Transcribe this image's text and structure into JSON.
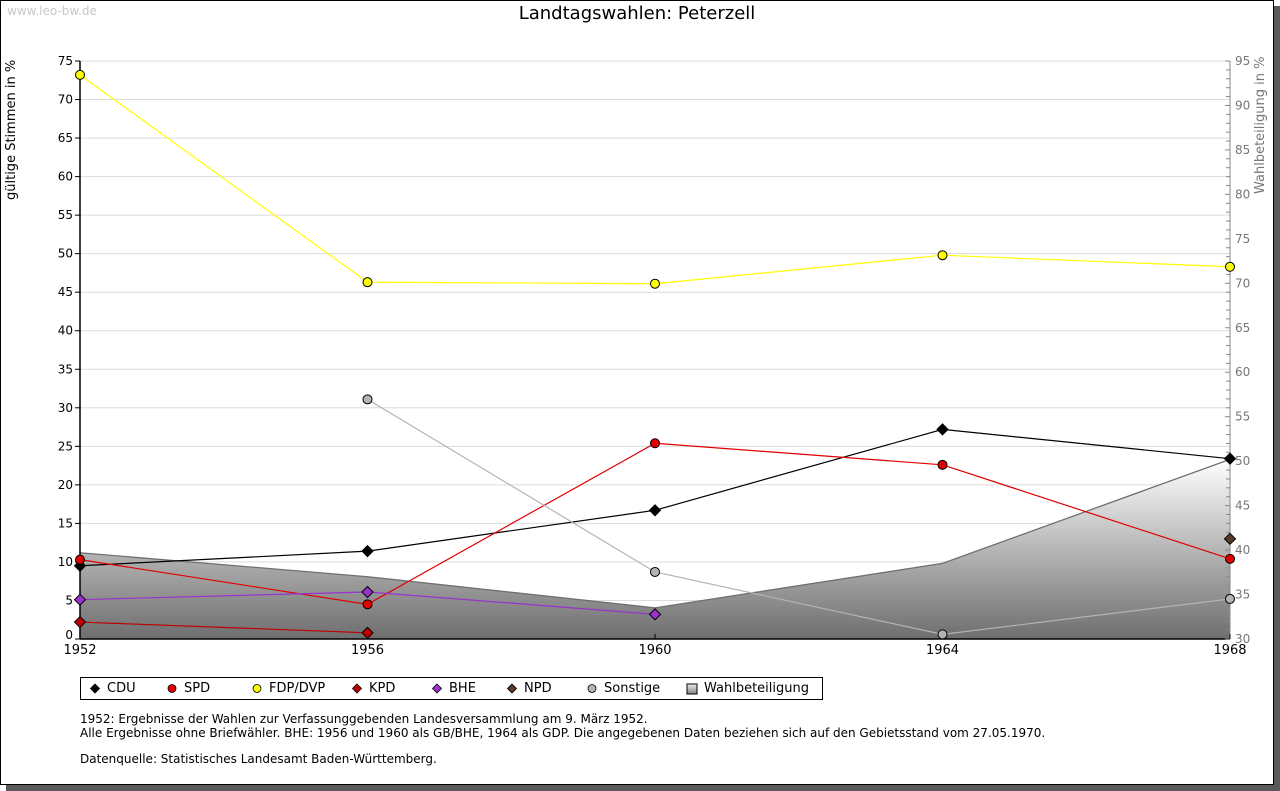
{
  "watermark": "www.leo-bw.de",
  "chart_data": {
    "type": "line",
    "title": "Landtagswahlen: Peterzell",
    "ylabel": "gültige Stimmen in %",
    "y2label": "Wahlbeteiligung in %",
    "xlabel": "",
    "x": [
      1952,
      1956,
      1960,
      1964,
      1968
    ],
    "x_tick_labels": [
      "1952",
      "1956",
      "1960",
      "1964",
      "1968"
    ],
    "ylim": [
      0,
      75
    ],
    "y_ticks": [
      "0",
      "5",
      "10",
      "15",
      "20",
      "25",
      "30",
      "35",
      "40",
      "45",
      "50",
      "55",
      "60",
      "65",
      "70",
      "75"
    ],
    "y2lim": [
      30,
      95
    ],
    "y2_ticks": [
      "30",
      "35",
      "40",
      "45",
      "50",
      "55",
      "60",
      "65",
      "70",
      "75",
      "80",
      "85",
      "90",
      "95"
    ],
    "grid": true,
    "legend_position": "bottom",
    "series": [
      {
        "name": "CDU",
        "color": "#000000",
        "marker": "diamond",
        "values": [
          9.5,
          11.4,
          16.7,
          27.2,
          23.4
        ]
      },
      {
        "name": "SPD",
        "color": "#e00000",
        "marker": "circle",
        "values": [
          10.3,
          4.5,
          25.4,
          22.6,
          10.4
        ]
      },
      {
        "name": "FDP/DVP",
        "color": "#ffff00",
        "marker": "circle",
        "values": [
          73.2,
          46.3,
          46.1,
          49.8,
          48.3
        ]
      },
      {
        "name": "KPD",
        "color": "#c00000",
        "marker": "diamond",
        "values": [
          2.2,
          0.8,
          null,
          null,
          null
        ]
      },
      {
        "name": "BHE",
        "color": "#9933cc",
        "marker": "diamond",
        "values": [
          5.1,
          6.1,
          3.2,
          null,
          null
        ]
      },
      {
        "name": "NPD",
        "color": "#5a3a28",
        "marker": "diamond",
        "values": [
          null,
          null,
          null,
          null,
          13.0
        ]
      },
      {
        "name": "Sonstige",
        "color": "#b4b4b4",
        "marker": "circle",
        "values": [
          null,
          31.1,
          8.7,
          0.6,
          5.2
        ]
      },
      {
        "name": "Wahlbeteiligung",
        "color": "#808080",
        "marker": "square",
        "axis": "right",
        "type": "area",
        "values": [
          39.7,
          37.0,
          33.5,
          38.5,
          50.2
        ]
      }
    ]
  },
  "notes": {
    "line1": "1952: Ergebnisse der Wahlen zur Verfassunggebenden Landesversammlung am 9. März 1952.",
    "line2": "Alle Ergebnisse ohne Briefwähler. BHE: 1956 und 1960 als GB/BHE, 1964 als GDP. Die angegebenen Daten beziehen sich auf den Gebietsstand vom 27.05.1970.",
    "source": "Datenquelle: Statistisches Landesamt Baden-Württemberg."
  }
}
